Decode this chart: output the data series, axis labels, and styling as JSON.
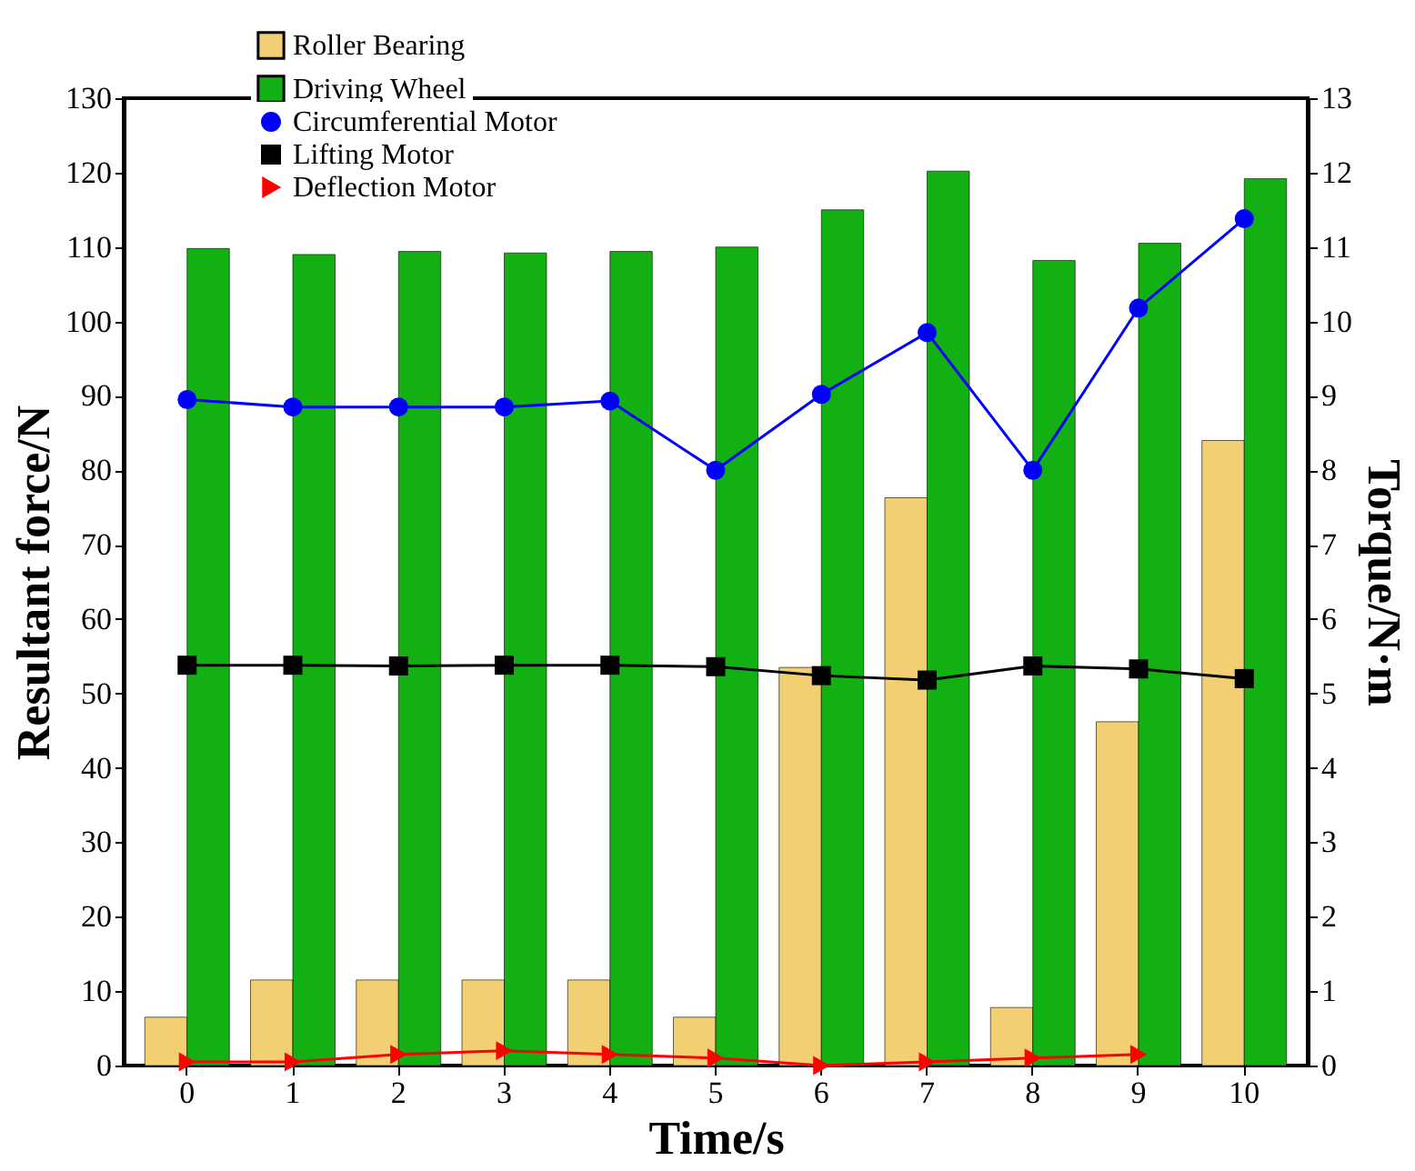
{
  "chart_data": {
    "type": "bar",
    "xlabel": "Time/s",
    "ylabel": "Resultant force/N",
    "y2label": "Torque/N·m",
    "categories": [
      "0",
      "1",
      "2",
      "3",
      "4",
      "5",
      "6",
      "7",
      "8",
      "9",
      "10"
    ],
    "series": [
      {
        "name": "Roller Bearing",
        "color": "#f2cf72",
        "values": [
          6.5,
          11.5,
          11.5,
          11.5,
          11.5,
          6.5,
          53.5,
          76.3,
          7.8,
          46.2,
          84
        ]
      },
      {
        "name": "Driving Wheel",
        "color": "#12b012",
        "values": [
          109.8,
          109,
          109.4,
          109.2,
          109.4,
          110,
          115,
          120.2,
          108.2,
          110.5,
          119.2
        ]
      },
      {
        "name": "Circumferential Motor",
        "type": "line",
        "axis": "y2",
        "marker": "circle",
        "color": "#0000ff",
        "values": [
          8.95,
          8.85,
          8.85,
          8.85,
          8.93,
          8.0,
          9.02,
          9.85,
          8.0,
          10.18,
          11.38
        ]
      },
      {
        "name": "Lifting Motor",
        "type": "line",
        "axis": "y2",
        "marker": "square",
        "color": "#000000",
        "values": [
          5.38,
          5.38,
          5.37,
          5.38,
          5.38,
          5.36,
          5.24,
          5.18,
          5.37,
          5.33,
          5.2
        ]
      },
      {
        "name": "Deflection Motor",
        "type": "line",
        "axis": "y2",
        "marker": "triangle",
        "color": "#ff0000",
        "values": [
          0.05,
          0.05,
          0.15,
          0.2,
          0.15,
          0.1,
          0.0,
          0.05,
          0.1,
          0.15,
          null
        ]
      }
    ],
    "ylim": [
      0,
      130
    ],
    "yticks": [
      0,
      10,
      20,
      30,
      40,
      50,
      60,
      70,
      80,
      90,
      100,
      110,
      120,
      130
    ],
    "y2lim": [
      0,
      13
    ],
    "y2ticks": [
      0,
      1,
      2,
      3,
      4,
      5,
      6,
      7,
      8,
      9,
      10,
      11,
      12,
      13
    ],
    "legend": "top left",
    "grid": false
  }
}
